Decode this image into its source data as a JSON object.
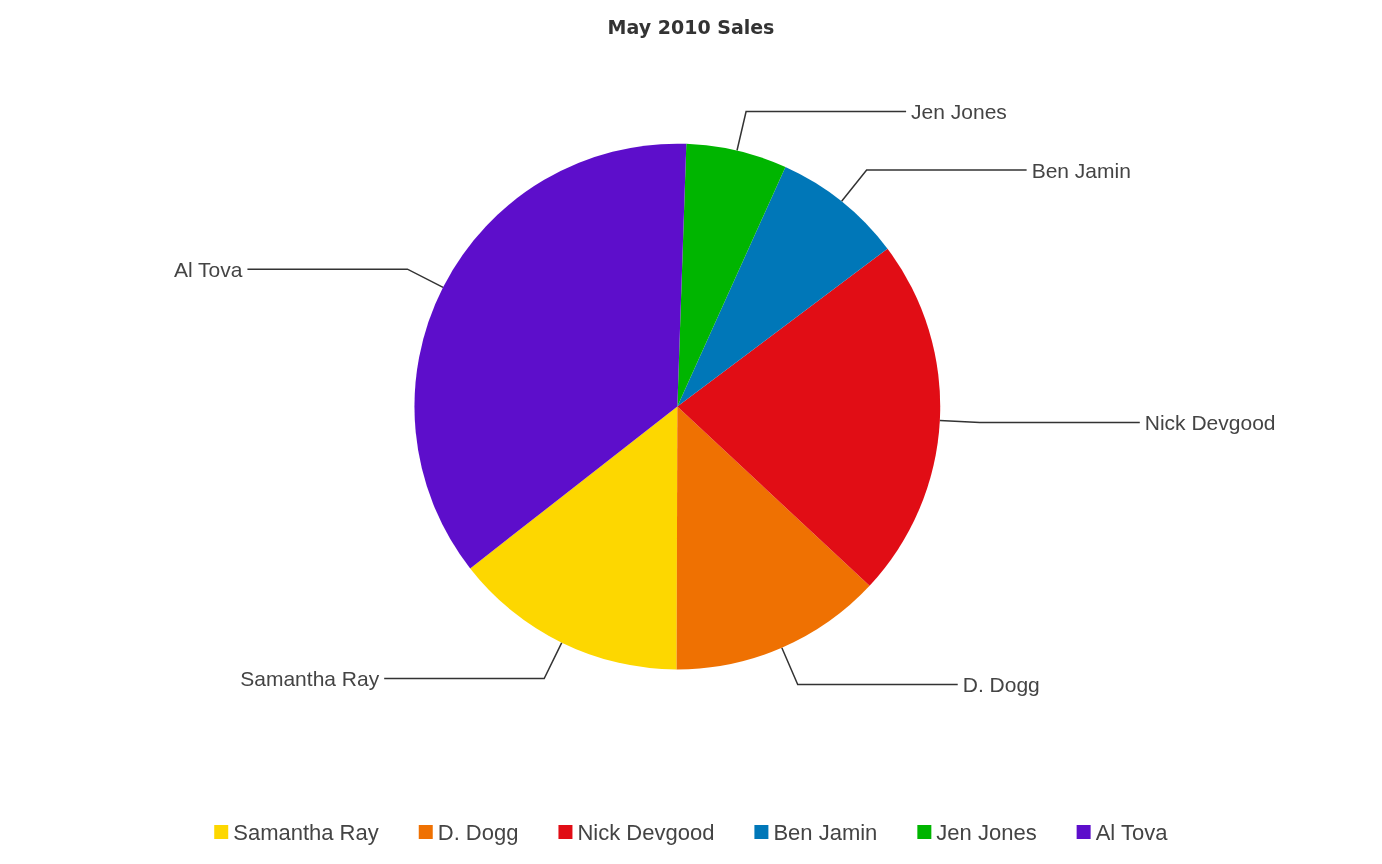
{
  "chart_data": {
    "type": "pie",
    "title": "May 2010 Sales",
    "categories": [
      "Samantha Ray",
      "D. Dogg",
      "Nick Devgood",
      "Ben Jamin",
      "Jen Jones",
      "Al Tova"
    ],
    "values": [
      14.4,
      13.1,
      22.2,
      8.0,
      6.2,
      36.1
    ],
    "colors": [
      "#fdd700",
      "#ef7102",
      "#e10d15",
      "#0077b8",
      "#00b500",
      "#5d0ecb"
    ],
    "legend": "bottom"
  }
}
